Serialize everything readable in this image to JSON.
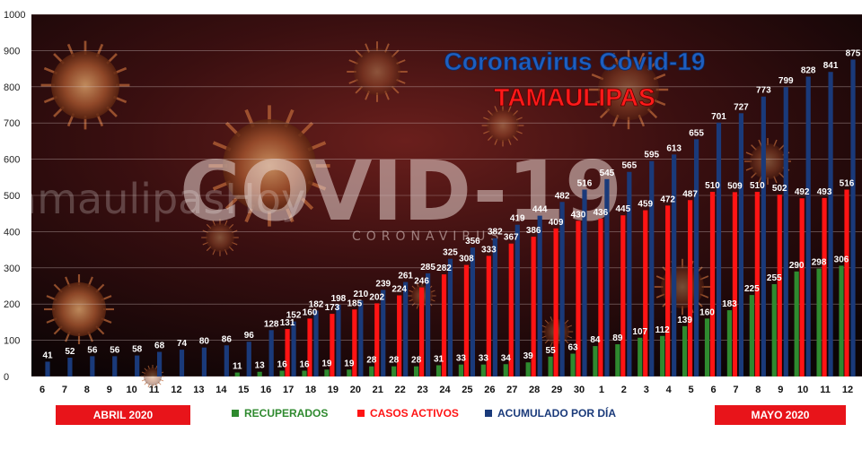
{
  "colors": {
    "recuperados": "#2f8a2f",
    "activos": "#ff1414",
    "acumulado": "#1a3a7a",
    "title_blue": "#1f5fbf",
    "title_red": "#ff1a1a",
    "month_box": "#e8141a"
  },
  "background": {
    "big_word": "COVID-19",
    "sub_word": "CORONAVIRUS",
    "watermark": "tamaulipasHoy"
  },
  "chart_data": {
    "type": "bar",
    "title": "Coronavirus Covid-19",
    "subtitle": "TAMAULIPAS",
    "ylim": [
      0,
      1000
    ],
    "yticks": [
      0,
      100,
      200,
      300,
      400,
      500,
      600,
      700,
      800,
      900,
      1000
    ],
    "grid": true,
    "legend_position": "bottom",
    "categories": [
      "6",
      "7",
      "8",
      "9",
      "10",
      "11",
      "12",
      "13",
      "14",
      "15",
      "16",
      "17",
      "18",
      "19",
      "20",
      "21",
      "22",
      "23",
      "24",
      "25",
      "26",
      "27",
      "28",
      "29",
      "30",
      "1",
      "2",
      "3",
      "4",
      "5",
      "6",
      "7",
      "8",
      "9",
      "10",
      "11",
      "12"
    ],
    "series": [
      {
        "name": "RECUPERADOS",
        "color": "#2f8a2f",
        "values": [
          null,
          null,
          null,
          null,
          null,
          null,
          null,
          null,
          null,
          11,
          13,
          16,
          16,
          19,
          19,
          28,
          28,
          28,
          31,
          33,
          33,
          34,
          39,
          55,
          63,
          84,
          89,
          107,
          112,
          139,
          160,
          183,
          225,
          255,
          290,
          298,
          306
        ]
      },
      {
        "name": "CASOS ACTIVOS",
        "color": "#ff1414",
        "values": [
          null,
          null,
          null,
          null,
          null,
          null,
          null,
          null,
          null,
          null,
          null,
          131,
          160,
          173,
          185,
          202,
          224,
          246,
          282,
          308,
          333,
          367,
          386,
          409,
          430,
          436,
          445,
          459,
          472,
          487,
          510,
          509,
          510,
          502,
          492,
          493,
          516
        ]
      },
      {
        "name": "ACUMULADO POR DÍA",
        "color": "#1a3a7a",
        "values": [
          41,
          52,
          56,
          56,
          58,
          68,
          74,
          80,
          86,
          96,
          128,
          152,
          182,
          198,
          210,
          239,
          261,
          285,
          325,
          356,
          382,
          419,
          444,
          482,
          516,
          545,
          565,
          595,
          613,
          655,
          701,
          727,
          773,
          799,
          828,
          841,
          875
        ]
      }
    ],
    "month_labels": [
      {
        "label": "ABRIL 2020"
      },
      {
        "label": "MAYO 2020"
      }
    ]
  },
  "legend": {
    "recuperados": "RECUPERADOS",
    "activos": "CASOS ACTIVOS",
    "acumulado": "ACUMULADO POR DÍA"
  }
}
